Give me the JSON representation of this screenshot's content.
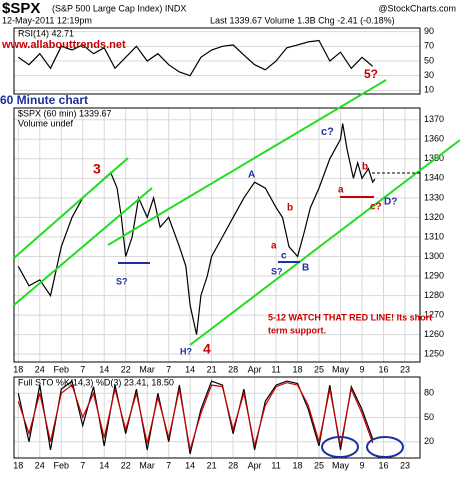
{
  "header": {
    "symbol": "$SPX",
    "name": "(S&P 500 Large Cap Index) INDX",
    "date": "12-May-2011 12:19pm",
    "quote": "Last 1339.67 Volume 1.3B Chg -2.41 (-0.18%)",
    "source": "@StockCharts.com",
    "site": "www.allabouttrends.net",
    "timeframe": "60 Minute chart"
  },
  "annotations": [
    "3",
    "S?",
    "H?",
    "4",
    "A",
    "b",
    "a",
    "c",
    "S?",
    "B",
    "c?",
    "b",
    "a",
    "c?",
    "D?",
    "5?",
    "5-12 WATCH THAT RED LINE! Its short",
    "term support."
  ],
  "chart_data": [
    {
      "type": "line",
      "title": "RSI(14) 42.71",
      "color": "#000000",
      "grid": true,
      "x": [
        0,
        0.5,
        1,
        1.5,
        2,
        2.5,
        3,
        3.5,
        4,
        4.5,
        5,
        5.5,
        6,
        6.5,
        7,
        7.5,
        8,
        8.5,
        9,
        9.5,
        10,
        10.5,
        11,
        11.5,
        12,
        12.5,
        13,
        13.5,
        14,
        14.5,
        15,
        15.5,
        16,
        16.5
      ],
      "values": [
        55,
        45,
        60,
        40,
        70,
        65,
        72,
        60,
        68,
        40,
        55,
        70,
        50,
        60,
        45,
        35,
        30,
        55,
        65,
        70,
        72,
        58,
        45,
        38,
        50,
        68,
        72,
        76,
        78,
        50,
        62,
        40,
        55,
        42.71
      ],
      "xlim": [
        -0.2,
        18.7
      ],
      "ylim": [
        5,
        95
      ],
      "yticks": [
        10,
        30,
        50,
        70,
        90
      ]
    },
    {
      "type": "line",
      "title": "$SPX (60 min) 1339.67",
      "subtitle": "Volume undef",
      "color": "#000000",
      "grid": true,
      "x": [
        0,
        0.5,
        1,
        1.5,
        2,
        2.5,
        3,
        3.5,
        4,
        4.3,
        4.6,
        4.8,
        5,
        5.3,
        5.6,
        6,
        6.3,
        6.6,
        7,
        7.5,
        7.8,
        8,
        8.3,
        8.5,
        8.8,
        9,
        9.5,
        10,
        10.5,
        11,
        11.5,
        12,
        12.3,
        12.6,
        13,
        13.3,
        13.6,
        14,
        14.5,
        15,
        15.1,
        15.3,
        15.6,
        15.8,
        16,
        16.3,
        16.5,
        16.6
      ],
      "values": [
        1295,
        1285,
        1288,
        1280,
        1305,
        1320,
        1330,
        1335,
        1340,
        1343,
        1335,
        1320,
        1300,
        1310,
        1330,
        1320,
        1330,
        1315,
        1320,
        1305,
        1295,
        1275,
        1260,
        1280,
        1290,
        1300,
        1310,
        1320,
        1330,
        1338,
        1335,
        1325,
        1320,
        1305,
        1300,
        1312,
        1325,
        1335,
        1350,
        1360,
        1368,
        1355,
        1340,
        1348,
        1340,
        1345,
        1338,
        1339.67
      ],
      "xlim": [
        -0.2,
        18.7
      ],
      "ylim": [
        1246,
        1376
      ],
      "yticks": [
        1250,
        1260,
        1270,
        1280,
        1290,
        1300,
        1310,
        1320,
        1330,
        1340,
        1350,
        1360,
        1370
      ],
      "xticks": [
        {
          "value": 0,
          "label": "18"
        },
        {
          "value": 1,
          "label": "24"
        },
        {
          "value": 2,
          "label": "Feb"
        },
        {
          "value": 3,
          "label": "7"
        },
        {
          "value": 4,
          "label": "14"
        },
        {
          "value": 5,
          "label": "22"
        },
        {
          "value": 6,
          "label": "Mar"
        },
        {
          "value": 7,
          "label": "7"
        },
        {
          "value": 8,
          "label": "14"
        },
        {
          "value": 9,
          "label": "21"
        },
        {
          "value": 10,
          "label": "28"
        },
        {
          "value": 11,
          "label": "Apr"
        },
        {
          "value": 12,
          "label": "11"
        },
        {
          "value": 13,
          "label": "18"
        },
        {
          "value": 14,
          "label": "25"
        },
        {
          "value": 15,
          "label": "May"
        },
        {
          "value": 16,
          "label": "9"
        },
        {
          "value": 17,
          "label": "16"
        },
        {
          "value": 18,
          "label": "23"
        }
      ]
    },
    {
      "type": "line",
      "title": "Full STO %K(14,3) %D(3) 23.41, 18.50",
      "grid": true,
      "x": [
        0,
        0.5,
        1,
        1.5,
        2,
        2.5,
        3,
        3.5,
        4,
        4.5,
        5,
        5.5,
        6,
        6.5,
        7,
        7.5,
        8,
        8.5,
        9,
        9.5,
        10,
        10.5,
        11,
        11.5,
        12,
        12.5,
        13,
        13.5,
        14,
        14.5,
        15,
        15.5,
        16,
        16.5
      ],
      "series": [
        {
          "color": "#000000",
          "values": [
            80,
            20,
            90,
            10,
            85,
            95,
            40,
            88,
            15,
            90,
            30,
            85,
            10,
            80,
            20,
            90,
            5,
            60,
            95,
            90,
            30,
            85,
            10,
            70,
            90,
            95,
            92,
            60,
            15,
            90,
            10,
            88,
            60,
            23.41
          ]
        },
        {
          "color": "#cc0000",
          "values": [
            70,
            30,
            80,
            20,
            80,
            90,
            50,
            80,
            25,
            85,
            35,
            80,
            18,
            75,
            25,
            85,
            10,
            55,
            90,
            88,
            35,
            80,
            15,
            65,
            88,
            93,
            90,
            65,
            20,
            85,
            15,
            85,
            55,
            18.5
          ]
        }
      ],
      "xlim": [
        -0.2,
        18.7
      ],
      "ylim": [
        0,
        100
      ],
      "yticks": [
        20,
        50,
        80
      ],
      "xticks": [
        {
          "value": 0,
          "label": "18"
        },
        {
          "value": 1,
          "label": "24"
        },
        {
          "value": 2,
          "label": "Feb"
        },
        {
          "value": 3,
          "label": "7"
        },
        {
          "value": 4,
          "label": "14"
        },
        {
          "value": 5,
          "label": "22"
        },
        {
          "value": 6,
          "label": "Mar"
        },
        {
          "value": 7,
          "label": "7"
        },
        {
          "value": 8,
          "label": "14"
        },
        {
          "value": 9,
          "label": "21"
        },
        {
          "value": 10,
          "label": "28"
        },
        {
          "value": 11,
          "label": "Apr"
        },
        {
          "value": 12,
          "label": "11"
        },
        {
          "value": 13,
          "label": "18"
        },
        {
          "value": 14,
          "label": "25"
        },
        {
          "value": 15,
          "label": "May"
        },
        {
          "value": 16,
          "label": "9"
        },
        {
          "value": 17,
          "label": "16"
        },
        {
          "value": 18,
          "label": "23"
        }
      ]
    }
  ]
}
